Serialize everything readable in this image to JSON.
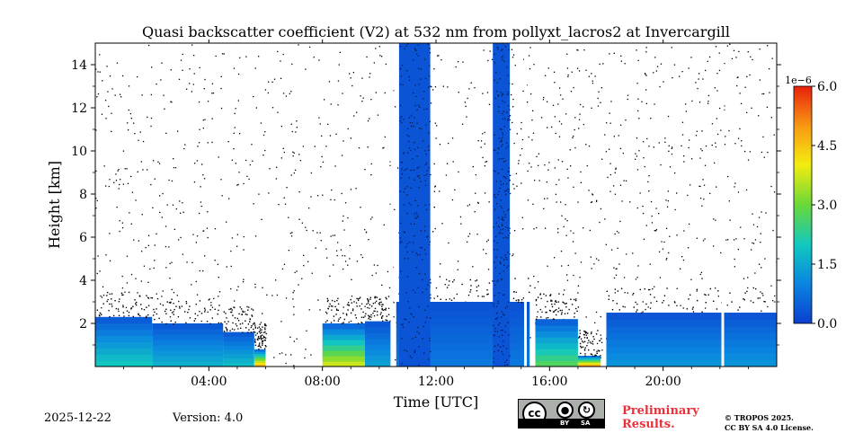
{
  "chart_data": {
    "type": "heatmap",
    "title": "Quasi backscatter coefficient (V2) at 532 nm from pollyxt_lacros2 at Invercargill",
    "xlabel": "Time [UTC]",
    "ylabel": "Height [km]",
    "xlim_hours": [
      0,
      24
    ],
    "ylim_km": [
      0,
      15
    ],
    "x_ticks": [
      {
        "hour": 4,
        "label": "04:00"
      },
      {
        "hour": 8,
        "label": "08:00"
      },
      {
        "hour": 12,
        "label": "12:00"
      },
      {
        "hour": 16,
        "label": "16:00"
      },
      {
        "hour": 20,
        "label": "20:00"
      }
    ],
    "y_ticks": [
      {
        "km": 2,
        "label": "2"
      },
      {
        "km": 4,
        "label": "4"
      },
      {
        "km": 6,
        "label": "6"
      },
      {
        "km": 8,
        "label": "8"
      },
      {
        "km": 10,
        "label": "10"
      },
      {
        "km": 12,
        "label": "12"
      },
      {
        "km": 14,
        "label": "14"
      }
    ],
    "colorbar": {
      "min": 0.0,
      "max": 6.0,
      "exponent_label": "1e−6",
      "ticks": [
        {
          "value": 0.0,
          "label": "0.0"
        },
        {
          "value": 1.5,
          "label": "1.5"
        },
        {
          "value": 3.0,
          "label": "3.0"
        },
        {
          "value": 4.5,
          "label": "4.5"
        },
        {
          "value": 6.0,
          "label": "6.0"
        }
      ],
      "colors": [
        "#0a3fd0",
        "#0a86e0",
        "#10c8c0",
        "#6ad838",
        "#f4ec10",
        "#f89a14",
        "#e8200c"
      ]
    },
    "aerosol_layer": [
      {
        "t0": 0.0,
        "t1": 2.0,
        "top_km": 2.3,
        "base_value": 1.8
      },
      {
        "t0": 2.0,
        "t1": 4.5,
        "top_km": 2.0,
        "base_value": 1.4
      },
      {
        "t0": 4.5,
        "t1": 5.6,
        "top_km": 1.6,
        "base_value": 1.6
      },
      {
        "t0": 5.6,
        "t1": 6.0,
        "top_km": 0.8,
        "base_value": 4.5
      },
      {
        "t0": 8.0,
        "t1": 9.5,
        "top_km": 2.0,
        "base_value": 3.5
      },
      {
        "t0": 9.5,
        "t1": 10.4,
        "top_km": 2.1,
        "base_value": 1.2
      },
      {
        "t0": 10.6,
        "t1": 15.3,
        "top_km": 3.0,
        "base_value": 0.6
      },
      {
        "t0": 15.5,
        "t1": 17.0,
        "top_km": 2.2,
        "base_value": 2.5
      },
      {
        "t0": 17.0,
        "t1": 17.8,
        "top_km": 0.5,
        "base_value": 5.0
      },
      {
        "t0": 18.0,
        "t1": 24.0,
        "top_km": 2.5,
        "base_value": 1.0
      }
    ],
    "cloud_columns": [
      {
        "t0": 10.7,
        "t1": 11.8,
        "top_km": 15.0,
        "value": 0.3
      },
      {
        "t0": 14.0,
        "t1": 14.6,
        "top_km": 15.0,
        "value": 0.3
      }
    ],
    "gaps_hours": [
      10.45,
      15.15,
      22.1
    ]
  },
  "footer": {
    "date": "2025-12-22",
    "version": "Version: 4.0",
    "preliminary_line1": "Preliminary",
    "preliminary_line2": "Results.",
    "copyright_line1": "© TROPOS 2025.",
    "copyright_line2": "CC BY SA 4.0 License."
  },
  "license_badge": {
    "cc": "cc",
    "by": "BY",
    "sa": "SA"
  }
}
